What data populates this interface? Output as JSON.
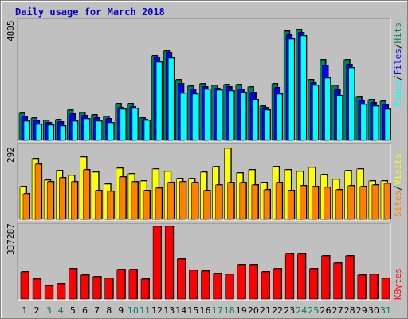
{
  "chart_data": {
    "type": "bar",
    "title": "Daily usage for March 2018",
    "categories": [
      "1",
      "2",
      "3",
      "4",
      "5",
      "6",
      "7",
      "8",
      "9",
      "10",
      "11",
      "12",
      "13",
      "14",
      "15",
      "16",
      "17",
      "18",
      "19",
      "20",
      "21",
      "22",
      "23",
      "24",
      "25",
      "26",
      "27",
      "28",
      "29",
      "30",
      "31"
    ],
    "weekend_days": [
      3,
      4,
      10,
      11,
      17,
      18,
      24,
      25,
      31
    ],
    "panels": {
      "hits_files_pages": {
        "max_label": "4805",
        "max": 4805,
        "series_labels": [
          "Hits",
          "Files",
          "Pages"
        ],
        "series": [
          {
            "name": "Hits",
            "values": [
              1100,
              910,
              800,
              830,
              1220,
              1140,
              1040,
              970,
              1490,
              1490,
              910,
              3450,
              3650,
              2480,
              2210,
              2310,
              2240,
              2280,
              2270,
              2160,
              1410,
              2290,
              4450,
              4520,
              2460,
              3290,
              2250,
              3280,
              1750,
              1660,
              1580
            ]
          },
          {
            "name": "Files",
            "values": [
              960,
              810,
              720,
              750,
              1070,
              1010,
              920,
              870,
              1340,
              1350,
              830,
              3370,
              3570,
              2320,
              2070,
              2190,
              2110,
              2160,
              2090,
              1960,
              1320,
              2140,
              4270,
              4390,
              2340,
              3040,
              2050,
              3090,
              1610,
              1520,
              1450
            ]
          },
          {
            "name": "Pages",
            "values": [
              780,
              660,
              610,
              580,
              790,
              880,
              790,
              730,
              1270,
              1290,
              820,
              3190,
              3360,
              1900,
              1890,
              2080,
              2040,
              2020,
              1940,
              1660,
              1230,
              1890,
              4110,
              4260,
              2230,
              2530,
              1820,
              2940,
              1450,
              1380,
              1280
            ]
          }
        ]
      },
      "visits_sites": {
        "max_label": "292",
        "max": 292,
        "series_labels": [
          "Visits",
          "Sites"
        ],
        "series": [
          {
            "name": "Visits",
            "values": [
              133,
              245,
              157,
              195,
              178,
              250,
              190,
              141,
              204,
              184,
              155,
              202,
              191,
              163,
              163,
              189,
              213,
              287,
              187,
              199,
              146,
              213,
              198,
              191,
              210,
              181,
              159,
              196,
              201,
              155,
              155
            ]
          },
          {
            "name": "Sites",
            "values": [
              103,
              221,
              150,
              167,
              152,
              199,
              117,
              111,
              170,
              150,
              117,
              126,
              149,
              150,
              146,
              117,
              137,
              147,
              148,
              139,
              120,
              146,
              115,
              136,
              133,
              127,
              120,
              134,
              131,
              139,
              145
            ]
          }
        ]
      },
      "kbytes": {
        "max_label": "337287",
        "max": 337287,
        "series_labels": [
          "KBytes"
        ],
        "series": [
          {
            "name": "KBytes",
            "values": [
              127000,
              93000,
              63000,
              69000,
              141000,
              110000,
              102000,
              96000,
              136000,
              137000,
              94000,
              337287,
              337287,
              186000,
              133000,
              128000,
              118000,
              114000,
              160000,
              160000,
              126000,
              141000,
              212000,
              210000,
              139000,
              202000,
              167000,
              200000,
              113000,
              114000,
              97000
            ]
          }
        ]
      }
    },
    "colors": {
      "Hits": "#00805c",
      "Files": "#0000ff",
      "Pages": "#00ffff",
      "Visits": "#ffff00",
      "Sites": "#ff8000",
      "KBytes": "#ff0000",
      "title": "#0000cc",
      "weekend_label": "#00805c"
    }
  }
}
